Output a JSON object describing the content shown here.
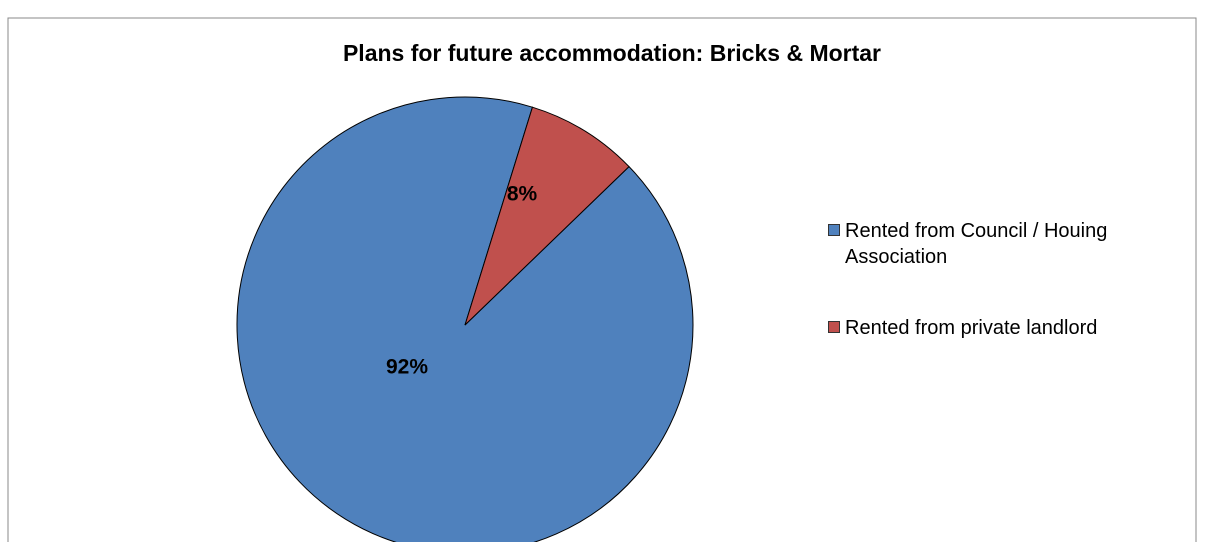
{
  "chart_data": {
    "type": "pie",
    "title": "Plans for future accommodation: Bricks & Mortar",
    "categories": [
      "Rented from Council / Houing Association",
      "Rented from private landlord"
    ],
    "values": [
      92,
      8
    ],
    "value_labels": [
      "92%",
      "8%"
    ],
    "colors": [
      "#4f81bd",
      "#c0504d"
    ],
    "legend": "right"
  }
}
